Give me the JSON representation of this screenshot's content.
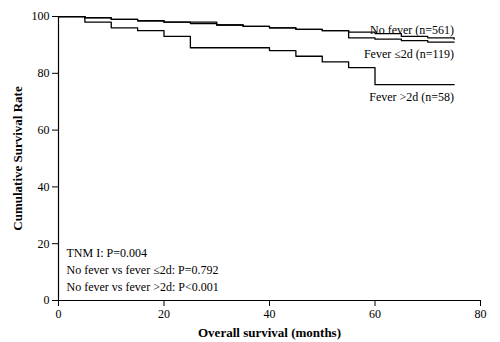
{
  "chart_data": {
    "type": "line",
    "x_label": "Overall survival (months)",
    "y_label": "Cumulative Survival Rate",
    "x": [
      0,
      5,
      10,
      15,
      20,
      25,
      30,
      35,
      40,
      45,
      50,
      55,
      60,
      65,
      70,
      75
    ],
    "series": [
      {
        "name": "No fever (n=561)",
        "color": "#000000",
        "line_style": "step",
        "values": [
          100,
          99.6,
          99,
          98.5,
          98,
          97.5,
          97,
          96.5,
          96,
          95.5,
          95,
          94.5,
          94,
          93,
          92.5,
          92
        ]
      },
      {
        "name": "Fever ≤2d (n=119)",
        "color": "#000000",
        "line_style": "step",
        "values": [
          100,
          99.5,
          99,
          98.5,
          98,
          98,
          97,
          96.5,
          96,
          95.5,
          95,
          92.5,
          92,
          91.5,
          91,
          91
        ]
      },
      {
        "name": "Fever >2d (n=58)",
        "color": "#000000",
        "line_style": "step",
        "values": [
          100,
          98,
          96,
          95,
          93,
          89,
          89,
          89,
          88,
          86,
          84,
          82,
          76,
          76,
          76,
          76
        ]
      }
    ],
    "annotations": [
      "TNM I: P=0.004",
      "No fever vs fever ≤2d: P=0.792",
      "No fever vs fever >2d: P<0.001"
    ],
    "xlim": [
      0,
      80
    ],
    "xticks": [
      0,
      20,
      40,
      60,
      80
    ],
    "ylim": [
      0,
      100
    ],
    "yticks": [
      0,
      20,
      40,
      60,
      80,
      100
    ],
    "grid": false
  }
}
